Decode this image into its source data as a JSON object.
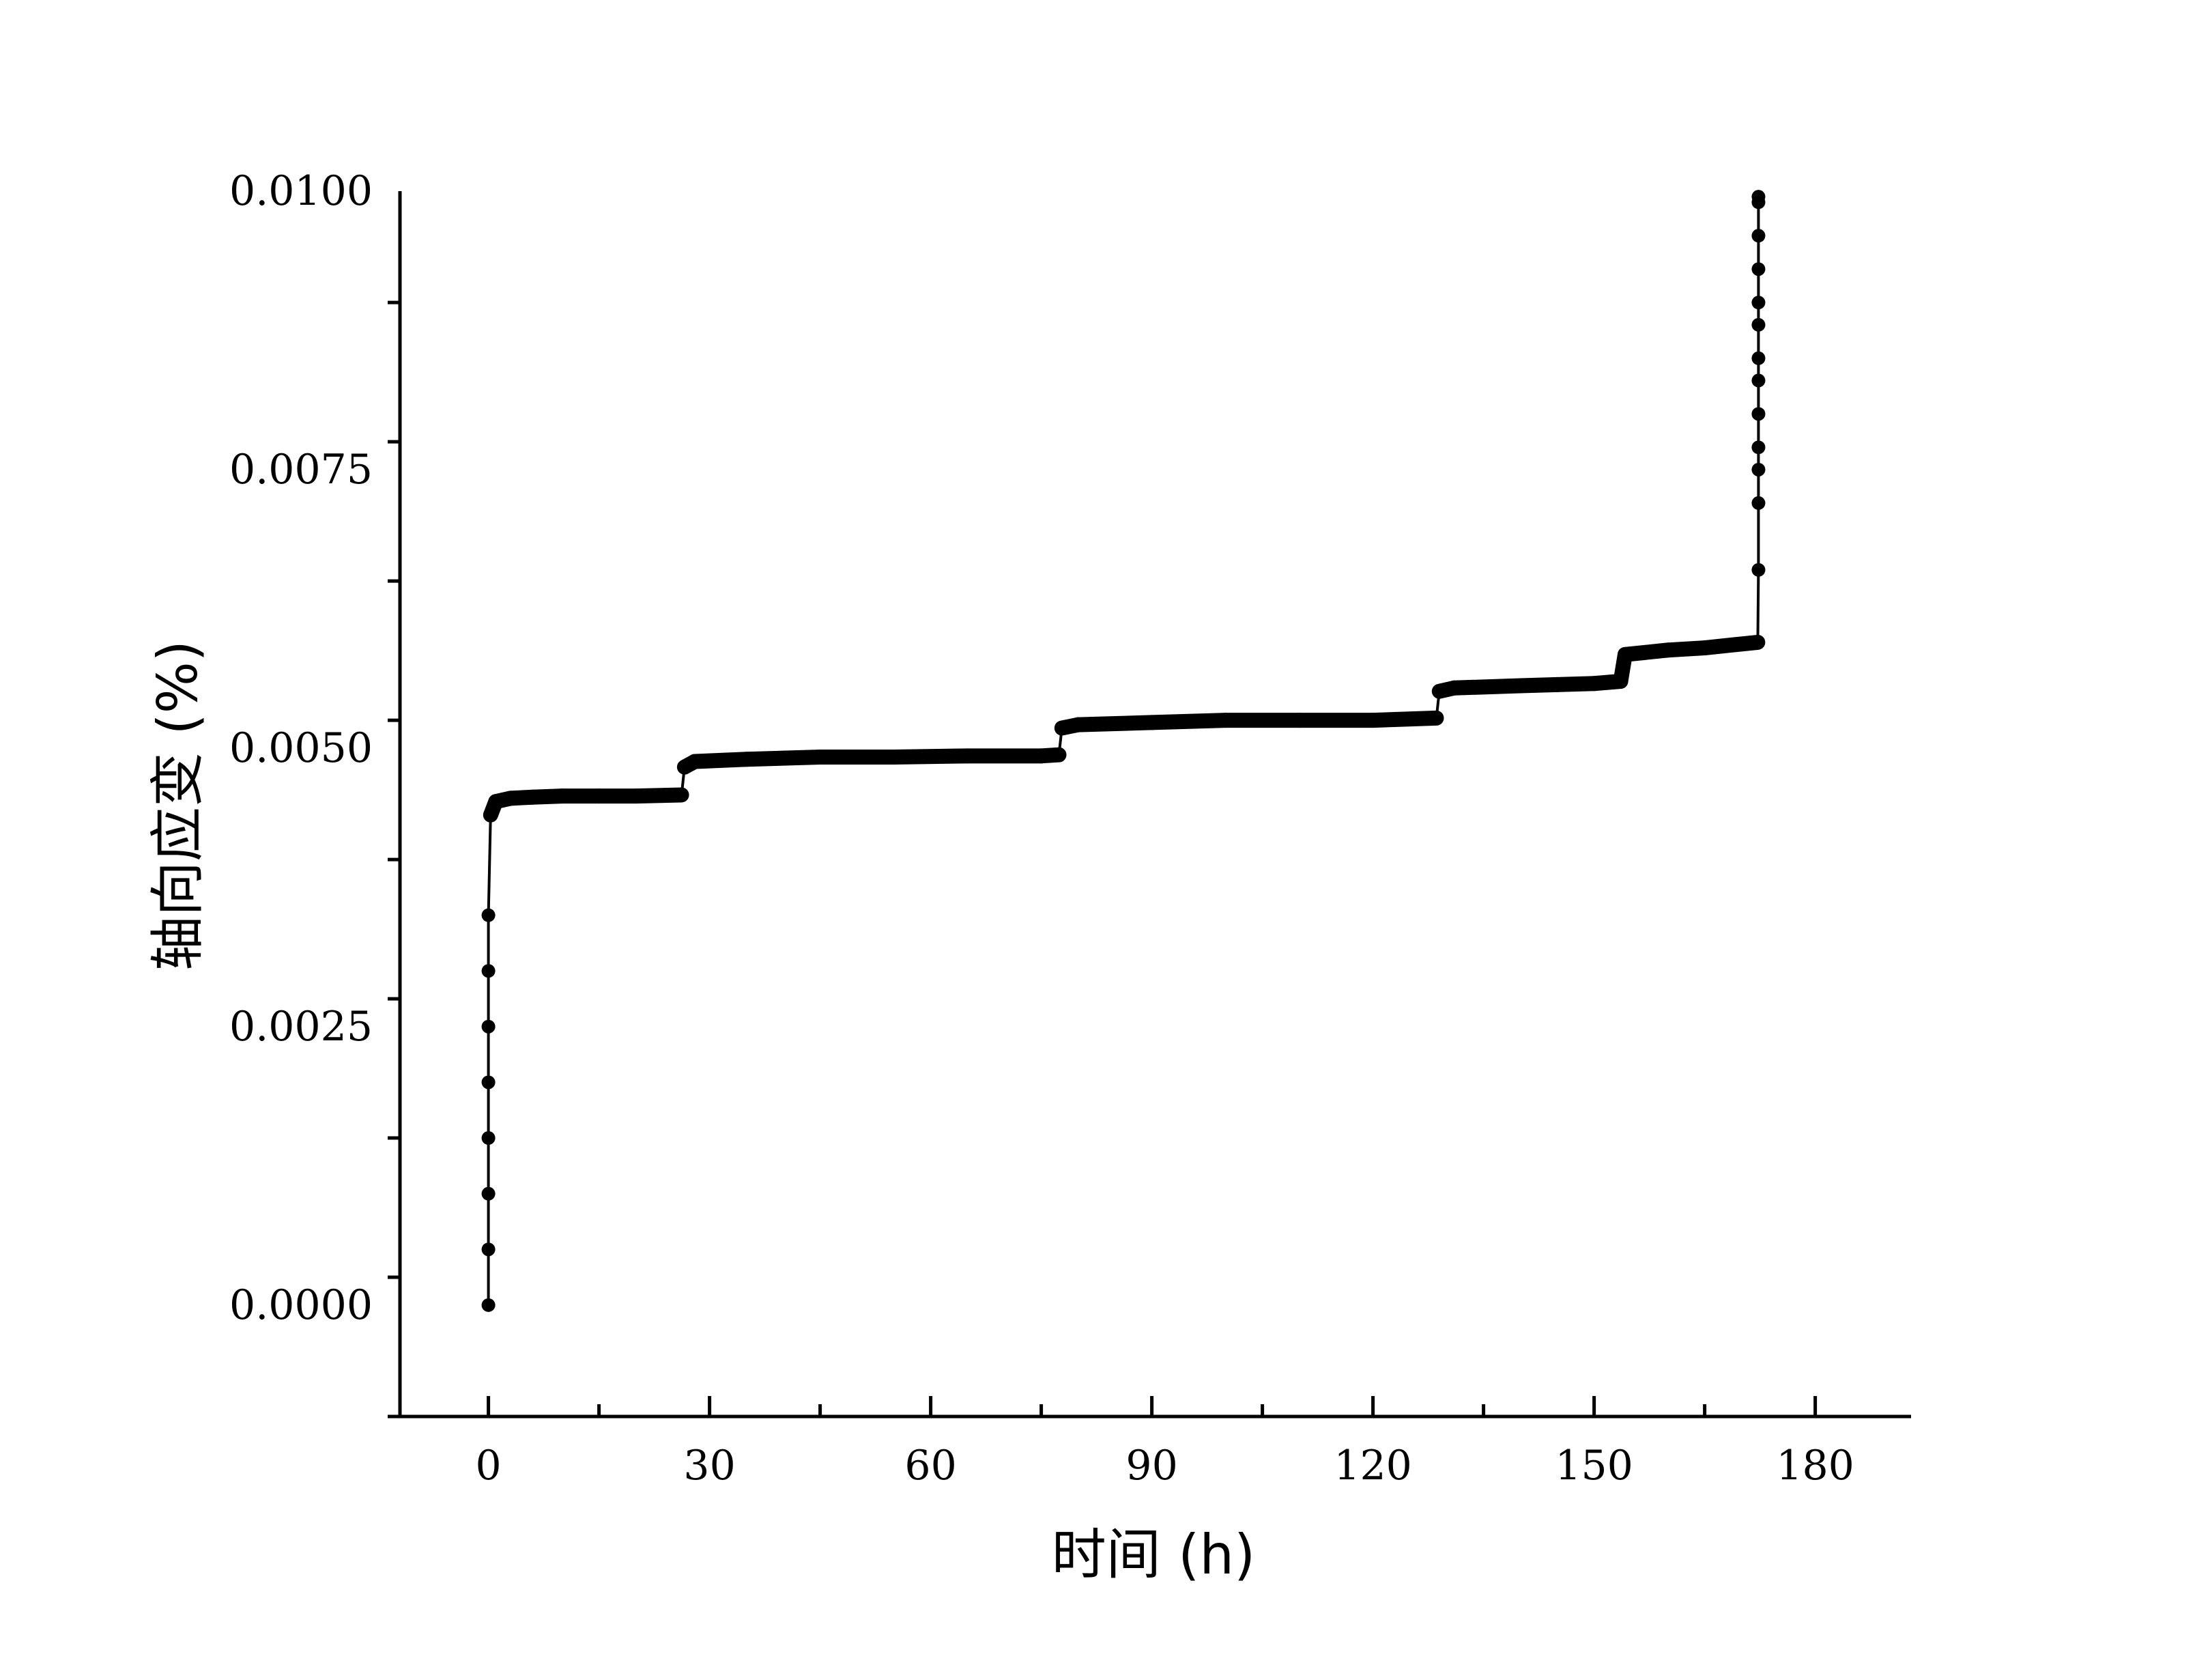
{
  "chart_data": {
    "type": "scatter",
    "title": "",
    "xlabel": "时间 (h)",
    "ylabel": "轴向应变 (%)",
    "xlim": [
      -12,
      193
    ],
    "ylim": [
      -0.001,
      0.01
    ],
    "x_ticks": [
      0,
      30,
      60,
      90,
      120,
      150,
      180
    ],
    "x_tick_labels": [
      "0",
      "30",
      "60",
      "90",
      "120",
      "150",
      "180"
    ],
    "y_ticks": [
      0.0,
      0.0025,
      0.005,
      0.0075,
      0.01
    ],
    "y_tick_labels": [
      "0.0000",
      "0.0025",
      "0.0050",
      "0.0075",
      "0.0100"
    ],
    "grid": false,
    "legend": "none",
    "marker_color": "#000000",
    "series": [
      {
        "x": [
          0,
          0,
          0,
          0,
          0,
          0,
          0,
          0,
          0.3,
          1,
          3,
          6,
          10,
          15,
          20,
          26.2,
          26.6,
          28,
          35,
          45,
          55,
          65,
          75,
          77.4,
          77.8,
          80,
          90,
          100,
          110,
          120,
          128.6,
          129.0,
          131,
          140,
          145,
          150,
          153.6,
          154.2,
          160,
          165,
          172.2,
          172.3,
          172.3,
          172.3,
          172.3,
          172.3,
          172.3,
          172.3,
          172.3,
          172.3,
          172.3,
          172.3,
          172.3,
          172.3
        ],
        "y": [
          0.0,
          0.0005,
          0.001,
          0.0015,
          0.002,
          0.0025,
          0.003,
          0.0035,
          0.0044,
          0.00452,
          0.00455,
          0.00456,
          0.00457,
          0.00457,
          0.00457,
          0.00458,
          0.00483,
          0.00488,
          0.0049,
          0.00492,
          0.00492,
          0.00493,
          0.00493,
          0.00494,
          0.00518,
          0.00521,
          0.00523,
          0.00525,
          0.00525,
          0.00525,
          0.00527,
          0.00551,
          0.00554,
          0.00556,
          0.00557,
          0.00558,
          0.0056,
          0.00584,
          0.00588,
          0.0059,
          0.00595,
          0.0066,
          0.0072,
          0.0075,
          0.0077,
          0.008,
          0.0083,
          0.0085,
          0.0088,
          0.009,
          0.0093,
          0.0096,
          0.0099,
          0.00995
        ]
      }
    ]
  }
}
